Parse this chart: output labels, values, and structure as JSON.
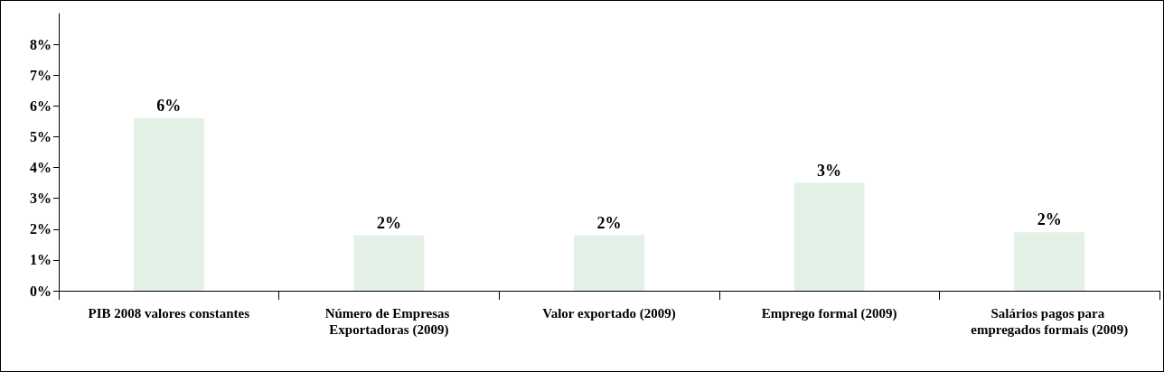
{
  "chart_data": {
    "type": "bar",
    "categories": [
      "PIB 2008 valores constantes",
      "Número de Empresas Exportadoras (2009)",
      "Valor exportado (2009)",
      "Emprego formal (2009)",
      "Salários pagos para empregados formais (2009)"
    ],
    "values": [
      5.6,
      1.8,
      1.8,
      3.5,
      1.9
    ],
    "value_labels": [
      "6%",
      "2%",
      "2%",
      "3%",
      "2%"
    ],
    "color": "#e2f0e6",
    "ylim": [
      0,
      9
    ],
    "yticks": [
      {
        "value": 0,
        "label": "0%"
      },
      {
        "value": 1,
        "label": "1%"
      },
      {
        "value": 2,
        "label": "2%"
      },
      {
        "value": 3,
        "label": "3%"
      },
      {
        "value": 4,
        "label": "4%"
      },
      {
        "value": 5,
        "label": "5%"
      },
      {
        "value": 6,
        "label": "6%"
      },
      {
        "value": 7,
        "label": "7%"
      },
      {
        "value": 8,
        "label": "8%"
      }
    ],
    "grid": false
  }
}
